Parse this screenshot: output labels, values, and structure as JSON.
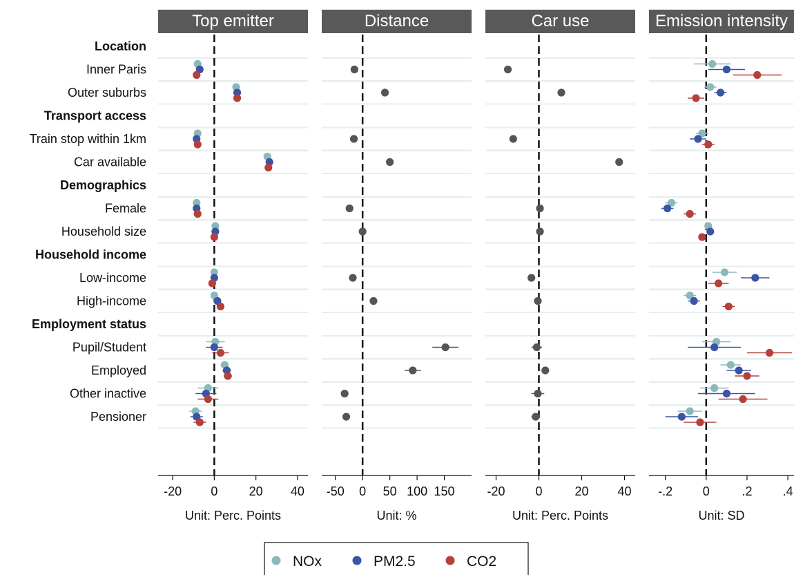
{
  "chart_data": {
    "type": "scatter",
    "subtype": "coefficient-plot",
    "rows": [
      {
        "label": "Location",
        "kind": "group"
      },
      {
        "label": "Inner Paris",
        "kind": "item"
      },
      {
        "label": "Outer suburbs",
        "kind": "item"
      },
      {
        "label": "Transport access",
        "kind": "group"
      },
      {
        "label": "Train stop within 1km",
        "kind": "item"
      },
      {
        "label": "Car available",
        "kind": "item"
      },
      {
        "label": "Demographics",
        "kind": "group"
      },
      {
        "label": "Female",
        "kind": "item"
      },
      {
        "label": "Household size",
        "kind": "item"
      },
      {
        "label": "Household income",
        "kind": "group"
      },
      {
        "label": "Low-income",
        "kind": "item"
      },
      {
        "label": "High-income",
        "kind": "item"
      },
      {
        "label": "Employment status",
        "kind": "group"
      },
      {
        "label": "Pupil/Student",
        "kind": "item"
      },
      {
        "label": "Employed",
        "kind": "item"
      },
      {
        "label": "Other inactive",
        "kind": "item"
      },
      {
        "label": "Pensioner",
        "kind": "item"
      }
    ],
    "legend": {
      "placement": "bottom",
      "entries": [
        {
          "name": "NOx",
          "color": "#8cb8bb"
        },
        {
          "name": "PM2.5",
          "color": "#3a55a4"
        },
        {
          "name": "CO2",
          "color": "#b5403b"
        }
      ]
    },
    "panels": [
      {
        "title": "Top emitter",
        "unit": "Unit: Perc. Points",
        "xlim": [
          -27,
          45
        ],
        "ticks": [
          -20,
          0,
          20,
          40
        ],
        "tick_labels": [
          "-20",
          "0",
          "20",
          "40"
        ],
        "points": [
          {
            "row": "Inner Paris",
            "series": "NOx",
            "value": -8,
            "lo": -9.5,
            "hi": -6.5
          },
          {
            "row": "Inner Paris",
            "series": "PM2.5",
            "value": -7,
            "lo": -8,
            "hi": -6
          },
          {
            "row": "Inner Paris",
            "series": "CO2",
            "value": -8.5,
            "lo": -9.5,
            "hi": -7.5
          },
          {
            "row": "Outer suburbs",
            "series": "NOx",
            "value": 10.5,
            "lo": 10,
            "hi": 11
          },
          {
            "row": "Outer suburbs",
            "series": "PM2.5",
            "value": 11,
            "lo": 10.5,
            "hi": 11.5
          },
          {
            "row": "Outer suburbs",
            "series": "CO2",
            "value": 11,
            "lo": 10.5,
            "hi": 11.5
          },
          {
            "row": "Train stop within 1km",
            "series": "NOx",
            "value": -8,
            "lo": -8.5,
            "hi": -7.5
          },
          {
            "row": "Train stop within 1km",
            "series": "PM2.5",
            "value": -8.5,
            "lo": -9,
            "hi": -8
          },
          {
            "row": "Train stop within 1km",
            "series": "CO2",
            "value": -8,
            "lo": -8.5,
            "hi": -7.5
          },
          {
            "row": "Car available",
            "series": "NOx",
            "value": 25.5,
            "lo": 25,
            "hi": 26
          },
          {
            "row": "Car available",
            "series": "PM2.5",
            "value": 26.5,
            "lo": 26,
            "hi": 27
          },
          {
            "row": "Car available",
            "series": "CO2",
            "value": 26,
            "lo": 25.5,
            "hi": 26.5
          },
          {
            "row": "Female",
            "series": "NOx",
            "value": -8.5,
            "lo": -9,
            "hi": -8
          },
          {
            "row": "Female",
            "series": "PM2.5",
            "value": -8.5,
            "lo": -9,
            "hi": -8
          },
          {
            "row": "Female",
            "series": "CO2",
            "value": -8,
            "lo": -8.5,
            "hi": -7.5
          },
          {
            "row": "Household size",
            "series": "NOx",
            "value": 0.5,
            "lo": 0,
            "hi": 1
          },
          {
            "row": "Household size",
            "series": "PM2.5",
            "value": 0.5,
            "lo": 0,
            "hi": 1
          },
          {
            "row": "Household size",
            "series": "CO2",
            "value": 0,
            "lo": -0.5,
            "hi": 0.5
          },
          {
            "row": "Low-income",
            "series": "NOx",
            "value": 0,
            "lo": -0.5,
            "hi": 0.5
          },
          {
            "row": "Low-income",
            "series": "PM2.5",
            "value": 0,
            "lo": -0.5,
            "hi": 0.5
          },
          {
            "row": "Low-income",
            "series": "CO2",
            "value": -1,
            "lo": -2,
            "hi": 0
          },
          {
            "row": "High-income",
            "series": "NOx",
            "value": 0,
            "lo": -0.5,
            "hi": 0.5
          },
          {
            "row": "High-income",
            "series": "PM2.5",
            "value": 1.5,
            "lo": 1,
            "hi": 2
          },
          {
            "row": "High-income",
            "series": "CO2",
            "value": 3,
            "lo": 2.5,
            "hi": 3.5
          },
          {
            "row": "Pupil/Student",
            "series": "NOx",
            "value": 0.5,
            "lo": -4,
            "hi": 5
          },
          {
            "row": "Pupil/Student",
            "series": "PM2.5",
            "value": 0,
            "lo": -4,
            "hi": 4
          },
          {
            "row": "Pupil/Student",
            "series": "CO2",
            "value": 3,
            "lo": -1,
            "hi": 7
          },
          {
            "row": "Employed",
            "series": "NOx",
            "value": 5,
            "lo": 3,
            "hi": 7
          },
          {
            "row": "Employed",
            "series": "PM2.5",
            "value": 6,
            "lo": 4,
            "hi": 8
          },
          {
            "row": "Employed",
            "series": "CO2",
            "value": 6.5,
            "lo": 4.5,
            "hi": 8.5
          },
          {
            "row": "Other inactive",
            "series": "NOx",
            "value": -3,
            "lo": -8,
            "hi": 2
          },
          {
            "row": "Other inactive",
            "series": "PM2.5",
            "value": -4,
            "lo": -9,
            "hi": 1
          },
          {
            "row": "Other inactive",
            "series": "CO2",
            "value": -3,
            "lo": -8,
            "hi": 2
          },
          {
            "row": "Pensioner",
            "series": "NOx",
            "value": -9,
            "lo": -12,
            "hi": -6
          },
          {
            "row": "Pensioner",
            "series": "PM2.5",
            "value": -8.5,
            "lo": -11.5,
            "hi": -5.5
          },
          {
            "row": "Pensioner",
            "series": "CO2",
            "value": -7,
            "lo": -10,
            "hi": -4
          }
        ]
      },
      {
        "title": "Distance",
        "unit": "Unit: %",
        "xlim": [
          -75,
          200
        ],
        "ticks": [
          -50,
          0,
          50,
          100,
          150
        ],
        "tick_labels": [
          "-50",
          "0",
          "50",
          "100",
          "150"
        ],
        "points": [
          {
            "row": "Inner Paris",
            "series": "all",
            "value": -15,
            "lo": -18,
            "hi": -12
          },
          {
            "row": "Outer suburbs",
            "series": "all",
            "value": 41,
            "lo": 38,
            "hi": 44
          },
          {
            "row": "Train stop within 1km",
            "series": "all",
            "value": -16,
            "lo": -19,
            "hi": -13
          },
          {
            "row": "Car available",
            "series": "all",
            "value": 50,
            "lo": 47,
            "hi": 53
          },
          {
            "row": "Female",
            "series": "all",
            "value": -24,
            "lo": -27,
            "hi": -21
          },
          {
            "row": "Household size",
            "series": "all",
            "value": 0,
            "lo": -2,
            "hi": 2
          },
          {
            "row": "Low-income",
            "series": "all",
            "value": -18,
            "lo": -21,
            "hi": -15
          },
          {
            "row": "High-income",
            "series": "all",
            "value": 20,
            "lo": 17,
            "hi": 23
          },
          {
            "row": "Pupil/Student",
            "series": "all",
            "value": 152,
            "lo": 128,
            "hi": 176
          },
          {
            "row": "Employed",
            "series": "all",
            "value": 92,
            "lo": 77,
            "hi": 107
          },
          {
            "row": "Other inactive",
            "series": "all",
            "value": -33,
            "lo": -40,
            "hi": -26
          },
          {
            "row": "Pensioner",
            "series": "all",
            "value": -30,
            "lo": -35,
            "hi": -25
          }
        ]
      },
      {
        "title": "Car use",
        "unit": "Unit: Perc. Points",
        "xlim": [
          -25,
          45
        ],
        "ticks": [
          -20,
          0,
          20,
          40
        ],
        "tick_labels": [
          "-20",
          "0",
          "20",
          "40"
        ],
        "points": [
          {
            "row": "Inner Paris",
            "series": "all",
            "value": -14.5,
            "lo": -16,
            "hi": -13
          },
          {
            "row": "Outer suburbs",
            "series": "all",
            "value": 10.5,
            "lo": 10,
            "hi": 11
          },
          {
            "row": "Train stop within 1km",
            "series": "all",
            "value": -12,
            "lo": -12.5,
            "hi": -11.5
          },
          {
            "row": "Car available",
            "series": "all",
            "value": 37.5,
            "lo": 37,
            "hi": 38
          },
          {
            "row": "Female",
            "series": "all",
            "value": 0.5,
            "lo": 0,
            "hi": 1
          },
          {
            "row": "Household size",
            "series": "all",
            "value": 0.5,
            "lo": 0,
            "hi": 1
          },
          {
            "row": "Low-income",
            "series": "all",
            "value": -3.5,
            "lo": -4,
            "hi": -3
          },
          {
            "row": "High-income",
            "series": "all",
            "value": -0.5,
            "lo": -1.5,
            "hi": 0.5
          },
          {
            "row": "Pupil/Student",
            "series": "all",
            "value": -1,
            "lo": -3.5,
            "hi": 1.5
          },
          {
            "row": "Employed",
            "series": "all",
            "value": 3,
            "lo": 1.5,
            "hi": 4.5
          },
          {
            "row": "Other inactive",
            "series": "all",
            "value": -0.5,
            "lo": -3.5,
            "hi": 2.5
          },
          {
            "row": "Pensioner",
            "series": "all",
            "value": -1.5,
            "lo": -3.5,
            "hi": 0.5
          }
        ]
      },
      {
        "title": "Emission intensity",
        "unit": "Unit: SD",
        "xlim": [
          -0.28,
          0.43
        ],
        "ticks": [
          -0.2,
          0,
          0.2,
          0.4
        ],
        "tick_labels": [
          "-.2",
          "0",
          ".2",
          ".4"
        ],
        "points": [
          {
            "row": "Inner Paris",
            "series": "NOx",
            "value": 0.03,
            "lo": -0.06,
            "hi": 0.12
          },
          {
            "row": "Inner Paris",
            "series": "PM2.5",
            "value": 0.1,
            "lo": 0.01,
            "hi": 0.19
          },
          {
            "row": "Inner Paris",
            "series": "CO2",
            "value": 0.25,
            "lo": 0.13,
            "hi": 0.37
          },
          {
            "row": "Outer suburbs",
            "series": "NOx",
            "value": 0.02,
            "lo": -0.01,
            "hi": 0.05
          },
          {
            "row": "Outer suburbs",
            "series": "PM2.5",
            "value": 0.07,
            "lo": 0.04,
            "hi": 0.1
          },
          {
            "row": "Outer suburbs",
            "series": "CO2",
            "value": -0.05,
            "lo": -0.09,
            "hi": -0.01
          },
          {
            "row": "Train stop within 1km",
            "series": "NOx",
            "value": -0.02,
            "lo": -0.05,
            "hi": 0.01
          },
          {
            "row": "Train stop within 1km",
            "series": "PM2.5",
            "value": -0.04,
            "lo": -0.08,
            "hi": 0
          },
          {
            "row": "Train stop within 1km",
            "series": "CO2",
            "value": 0.01,
            "lo": -0.02,
            "hi": 0.04
          },
          {
            "row": "Female",
            "series": "NOx",
            "value": -0.17,
            "lo": -0.2,
            "hi": -0.14
          },
          {
            "row": "Female",
            "series": "PM2.5",
            "value": -0.19,
            "lo": -0.22,
            "hi": -0.16
          },
          {
            "row": "Female",
            "series": "CO2",
            "value": -0.08,
            "lo": -0.11,
            "hi": -0.05
          },
          {
            "row": "Household size",
            "series": "NOx",
            "value": 0.01,
            "lo": 0,
            "hi": 0.02
          },
          {
            "row": "Household size",
            "series": "PM2.5",
            "value": 0.02,
            "lo": 0.01,
            "hi": 0.03
          },
          {
            "row": "Household size",
            "series": "CO2",
            "value": -0.02,
            "lo": -0.03,
            "hi": -0.01
          },
          {
            "row": "Low-income",
            "series": "NOx",
            "value": 0.09,
            "lo": 0.03,
            "hi": 0.15
          },
          {
            "row": "Low-income",
            "series": "PM2.5",
            "value": 0.24,
            "lo": 0.17,
            "hi": 0.31
          },
          {
            "row": "Low-income",
            "series": "CO2",
            "value": 0.06,
            "lo": 0.01,
            "hi": 0.11
          },
          {
            "row": "High-income",
            "series": "NOx",
            "value": -0.08,
            "lo": -0.11,
            "hi": -0.05
          },
          {
            "row": "High-income",
            "series": "PM2.5",
            "value": -0.06,
            "lo": -0.09,
            "hi": -0.03
          },
          {
            "row": "High-income",
            "series": "CO2",
            "value": 0.11,
            "lo": 0.08,
            "hi": 0.14
          },
          {
            "row": "Pupil/Student",
            "series": "NOx",
            "value": 0.05,
            "lo": -0.02,
            "hi": 0.12
          },
          {
            "row": "Pupil/Student",
            "series": "PM2.5",
            "value": 0.04,
            "lo": -0.09,
            "hi": 0.17
          },
          {
            "row": "Pupil/Student",
            "series": "CO2",
            "value": 0.31,
            "lo": 0.2,
            "hi": 0.42
          },
          {
            "row": "Employed",
            "series": "NOx",
            "value": 0.12,
            "lo": 0.07,
            "hi": 0.17
          },
          {
            "row": "Employed",
            "series": "PM2.5",
            "value": 0.16,
            "lo": 0.1,
            "hi": 0.22
          },
          {
            "row": "Employed",
            "series": "CO2",
            "value": 0.2,
            "lo": 0.14,
            "hi": 0.26
          },
          {
            "row": "Other inactive",
            "series": "NOx",
            "value": 0.04,
            "lo": -0.03,
            "hi": 0.11
          },
          {
            "row": "Other inactive",
            "series": "PM2.5",
            "value": 0.1,
            "lo": -0.04,
            "hi": 0.24
          },
          {
            "row": "Other inactive",
            "series": "CO2",
            "value": 0.18,
            "lo": 0.06,
            "hi": 0.3
          },
          {
            "row": "Pensioner",
            "series": "NOx",
            "value": -0.08,
            "lo": -0.14,
            "hi": -0.02
          },
          {
            "row": "Pensioner",
            "series": "PM2.5",
            "value": -0.12,
            "lo": -0.2,
            "hi": -0.04
          },
          {
            "row": "Pensioner",
            "series": "CO2",
            "value": -0.03,
            "lo": -0.11,
            "hi": 0.05
          }
        ]
      }
    ],
    "colors": {
      "single_series": "#555555",
      "header_bg": "#595959",
      "gridline": "#e6eeee"
    }
  }
}
